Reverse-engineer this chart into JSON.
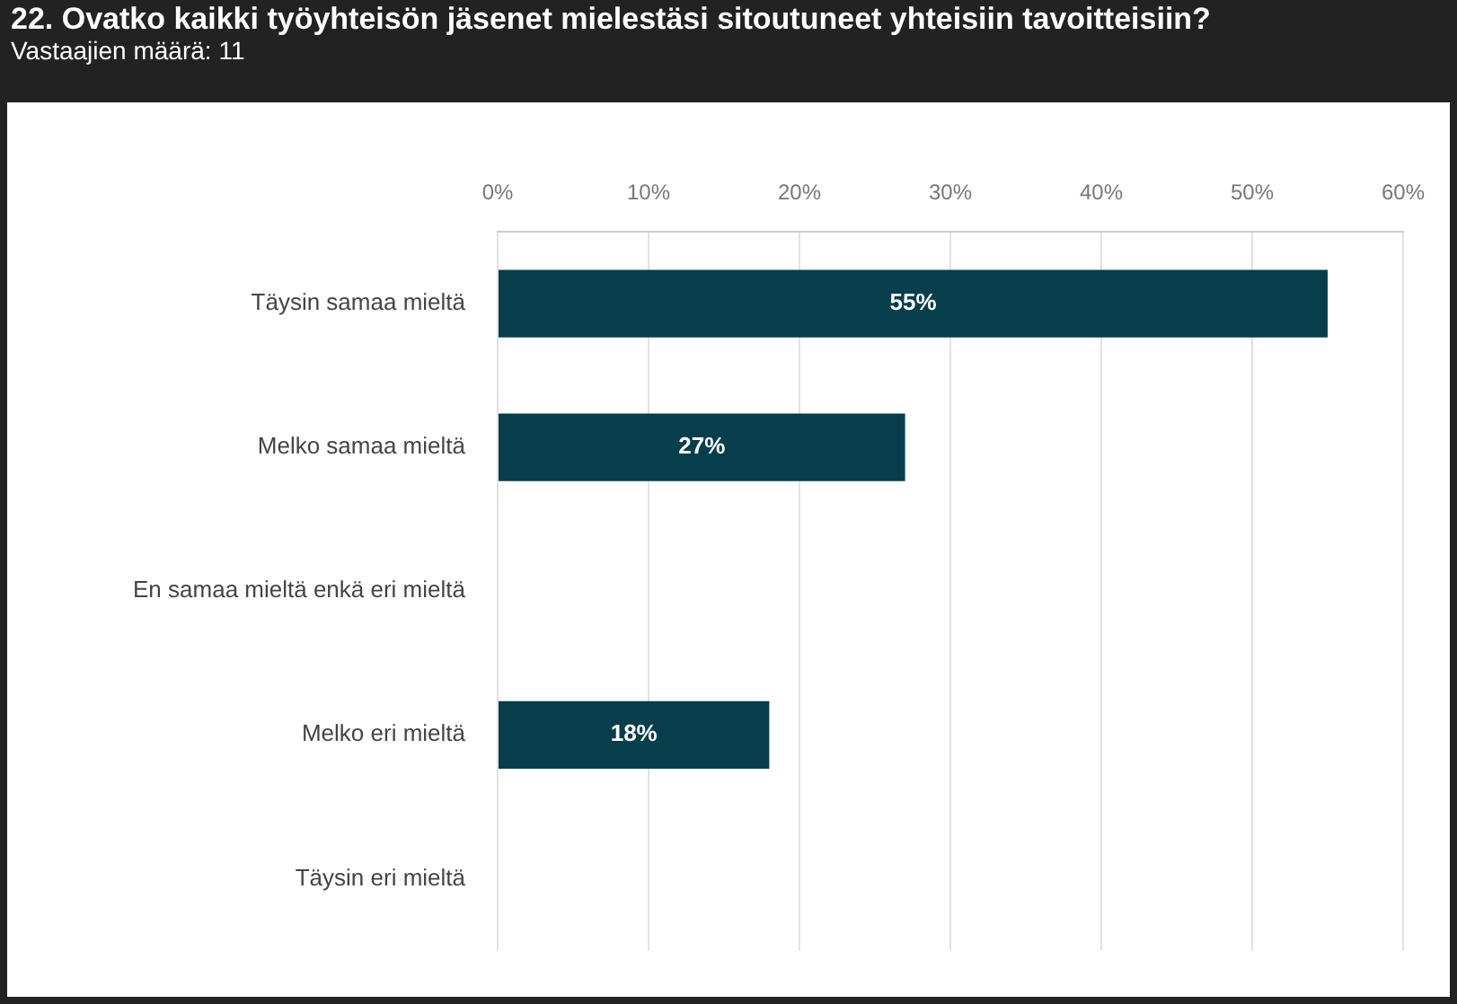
{
  "chart_data": {
    "type": "bar",
    "orientation": "horizontal",
    "title": "22. Ovatko kaikki työyhteisön jäsenet mielestäsi sitoutuneet yhteisiin tavoitteisiin?",
    "subtitle": "Vastaajien määrä: 11",
    "categories": [
      "Täysin samaa mieltä",
      "Melko samaa mieltä",
      "En samaa mieltä enkä eri mieltä",
      "Melko eri mieltä",
      "Täysin eri mieltä"
    ],
    "values": [
      55,
      27,
      0,
      18,
      0
    ],
    "value_labels": [
      "55%",
      "27%",
      null,
      "18%",
      null
    ],
    "color": "#063e4c",
    "xlim": [
      0,
      60
    ],
    "xticks": [
      {
        "value": 0,
        "label": "0%"
      },
      {
        "value": 10,
        "label": "10%"
      },
      {
        "value": 20,
        "label": "20%"
      },
      {
        "value": 30,
        "label": "30%"
      },
      {
        "value": 40,
        "label": "40%"
      },
      {
        "value": 50,
        "label": "50%"
      },
      {
        "value": 60,
        "label": "60%"
      }
    ],
    "grid": "x",
    "legend": false
  }
}
